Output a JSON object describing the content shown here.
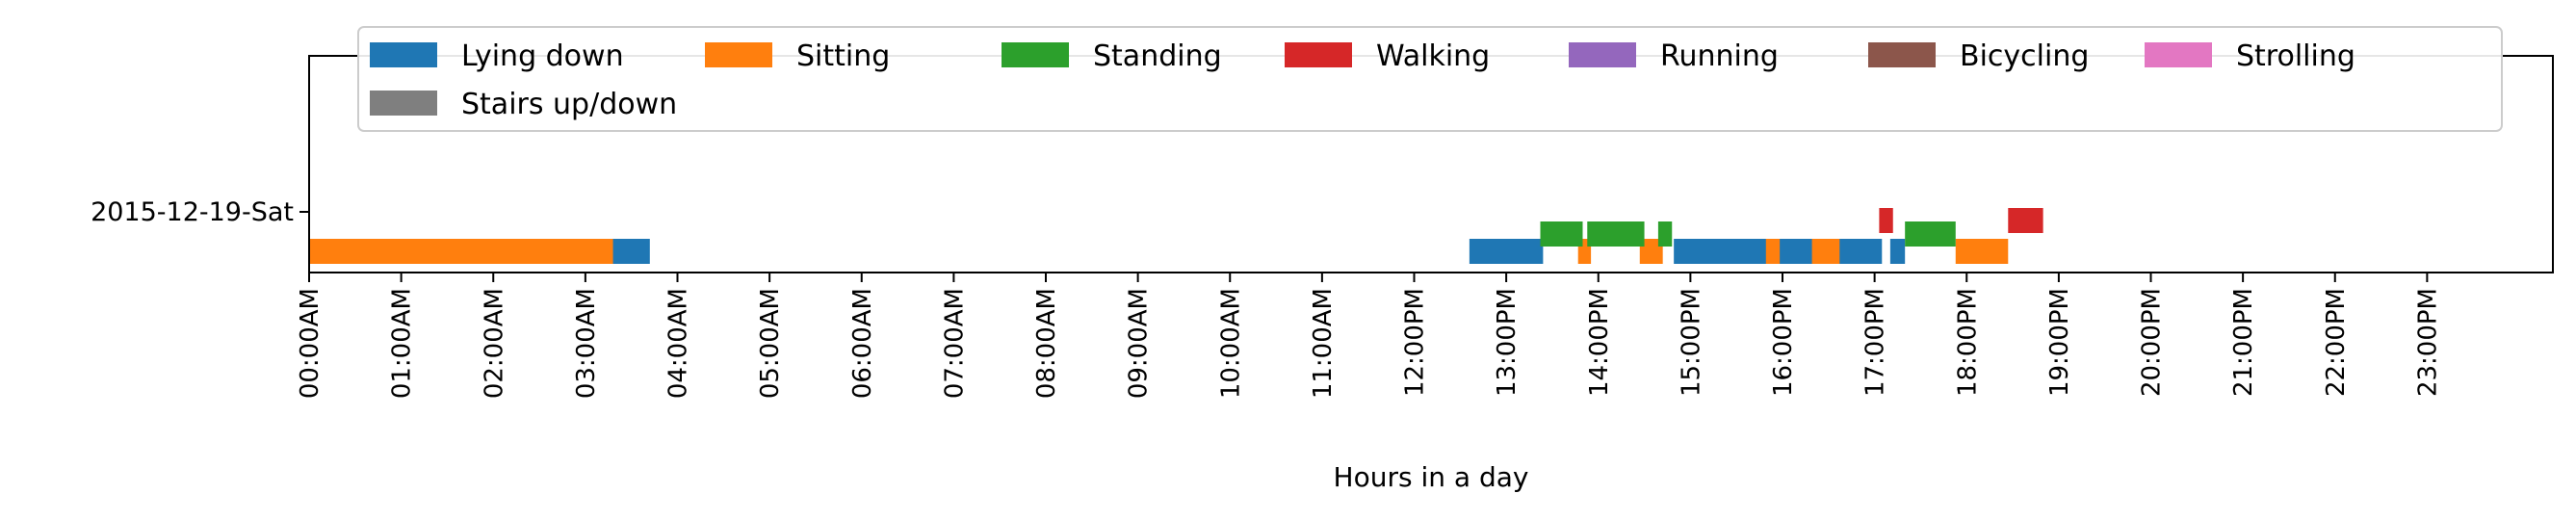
{
  "chart_data": {
    "type": "bar",
    "orientation": "horizontal",
    "title": "",
    "xlabel": "Hours in a day",
    "ylabel": "",
    "xlim": [
      0,
      24
    ],
    "xticks": [
      "00:00AM",
      "01:00AM",
      "02:00AM",
      "03:00AM",
      "04:00AM",
      "05:00AM",
      "06:00AM",
      "07:00AM",
      "08:00AM",
      "09:00AM",
      "10:00AM",
      "11:00AM",
      "12:00PM",
      "13:00PM",
      "14:00PM",
      "15:00PM",
      "16:00PM",
      "17:00PM",
      "18:00PM",
      "19:00PM",
      "20:00PM",
      "21:00PM",
      "22:00PM",
      "23:00PM"
    ],
    "categories": [
      "2015-12-19-Sat"
    ],
    "grid": false,
    "legend_position": "top",
    "series": [
      {
        "name": "Lying down",
        "color": "#1f77b4",
        "level": 0,
        "intervals": [
          [
            3.27,
            3.7
          ],
          [
            12.6,
            13.4
          ],
          [
            14.82,
            15.85
          ],
          [
            15.93,
            16.35
          ],
          [
            16.6,
            17.08
          ],
          [
            17.17,
            17.33
          ]
        ]
      },
      {
        "name": "Sitting",
        "color": "#ff7f0e",
        "level": 0,
        "intervals": [
          [
            0.0,
            3.3
          ],
          [
            13.78,
            13.92
          ],
          [
            14.45,
            14.7
          ],
          [
            15.82,
            15.97
          ],
          [
            16.32,
            16.62
          ],
          [
            17.88,
            18.45
          ]
        ]
      },
      {
        "name": "Standing",
        "color": "#2ca02c",
        "level": 1,
        "intervals": [
          [
            13.37,
            13.83
          ],
          [
            13.88,
            14.5
          ],
          [
            14.65,
            14.8
          ],
          [
            17.33,
            17.88
          ]
        ]
      },
      {
        "name": "Walking",
        "color": "#d62728",
        "level": 2,
        "intervals": [
          [
            17.05,
            17.2
          ],
          [
            18.45,
            18.83
          ]
        ]
      },
      {
        "name": "Running",
        "color": "#9467bd",
        "level": 0,
        "intervals": []
      },
      {
        "name": "Bicycling",
        "color": "#8c564b",
        "level": 0,
        "intervals": []
      },
      {
        "name": "Strolling",
        "color": "#e377c2",
        "level": 0,
        "intervals": []
      },
      {
        "name": "Stairs up/down",
        "color": "#7f7f7f",
        "level": 0,
        "intervals": []
      }
    ]
  }
}
